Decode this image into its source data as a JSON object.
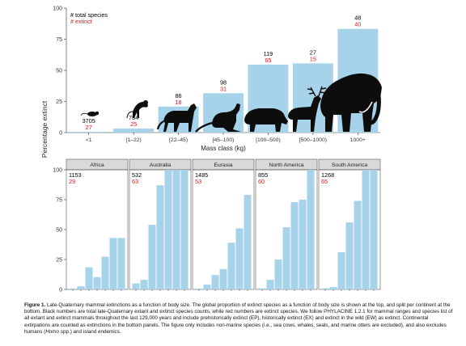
{
  "figure": {
    "y_axis_label": "Percentage extinct",
    "colors": {
      "bar": "#a6d3ea",
      "black_number": "#000000",
      "red_number": "#d7191c",
      "panel_strip": "#d9d9d9",
      "silhouette": "#0d0d0d"
    }
  },
  "chart_data": [
    {
      "type": "bar",
      "legend": {
        "total": "# total species",
        "extinct": "# extinct",
        "placement": "top-left"
      },
      "xlabel": "Mass class (kg)",
      "ylabel": "",
      "ylim": [
        0,
        100
      ],
      "y_ticks": [
        "0",
        "25",
        "50",
        "75",
        "100"
      ],
      "categories": [
        "<1",
        "[1–22)",
        "[22–45)",
        "[45–100)",
        "[100–500)",
        "[500–1000)",
        "1000+"
      ],
      "values": [
        0.7,
        3.2,
        20.9,
        31.6,
        54.6,
        55.6,
        83.3
      ],
      "total_species": [
        "3705",
        "784",
        "86",
        "98",
        "119",
        "27",
        "48"
      ],
      "extinct_species": [
        "27",
        "25",
        "18",
        "31",
        "65",
        "15",
        "40"
      ],
      "silhouettes": [
        "rodent-silhouette-icon",
        "monkey-silhouette-icon",
        "canid-silhouette-icon",
        "kangaroo-silhouette-icon",
        "tapir-silhouette-icon",
        "deer-silhouette-icon",
        "mammoth-silhouette-icon"
      ]
    },
    {
      "type": "bar",
      "ylim": [
        0,
        100
      ],
      "categories": [
        "<1",
        "[1–22)",
        "[22–45)",
        "[45–100)",
        "[100–500)",
        "[500–1000)",
        "1000+"
      ],
      "panels": [
        {
          "name": "Africa",
          "total": "1153",
          "extinct": "29",
          "values": [
            0.8,
            2.6,
            18.5,
            10.3,
            27.3,
            43.0,
            43.0
          ]
        },
        {
          "name": "Australia",
          "total": "532",
          "extinct": "63",
          "values": [
            5,
            8,
            54,
            87,
            100,
            100,
            100
          ]
        },
        {
          "name": "Eurasia",
          "total": "1485",
          "extinct": "53",
          "values": [
            0.7,
            4,
            12,
            17,
            39,
            51,
            79
          ]
        },
        {
          "name": "North America",
          "total": "855",
          "extinct": "60",
          "values": [
            1,
            8,
            25,
            52,
            73,
            75,
            100
          ]
        },
        {
          "name": "South America",
          "total": "1268",
          "extinct": "65",
          "values": [
            1,
            2,
            31,
            56,
            74,
            100,
            100
          ]
        }
      ]
    }
  ],
  "caption": {
    "label": "Figure 1.",
    "text_1": " Late-Quaternary mammal extinctions as a function of body size. The global proportion of extinct species as a function of body size is shown at the top, and split per continent at the bottom. Black numbers are total late-Quaternary extant and extinct species counts, while red numbers are extinct species. We follow PHYLACINE 1.2.1 for mammal ranges and species list of all extant and extinct mammals throughout the last 129,000 years and include prehistorically extinct (EP), historically extinct (EX) and extinct in the wild (EW) as extinct. Continental extirpations are counted as extinctions in the bottom panels. The figure only includes non-marine species (i.e., sea cows, whales, seals, and marine otters are excluded), and also excludes humans (",
    "italic": "Homo",
    "text_2": " spp.) and island endemics."
  }
}
